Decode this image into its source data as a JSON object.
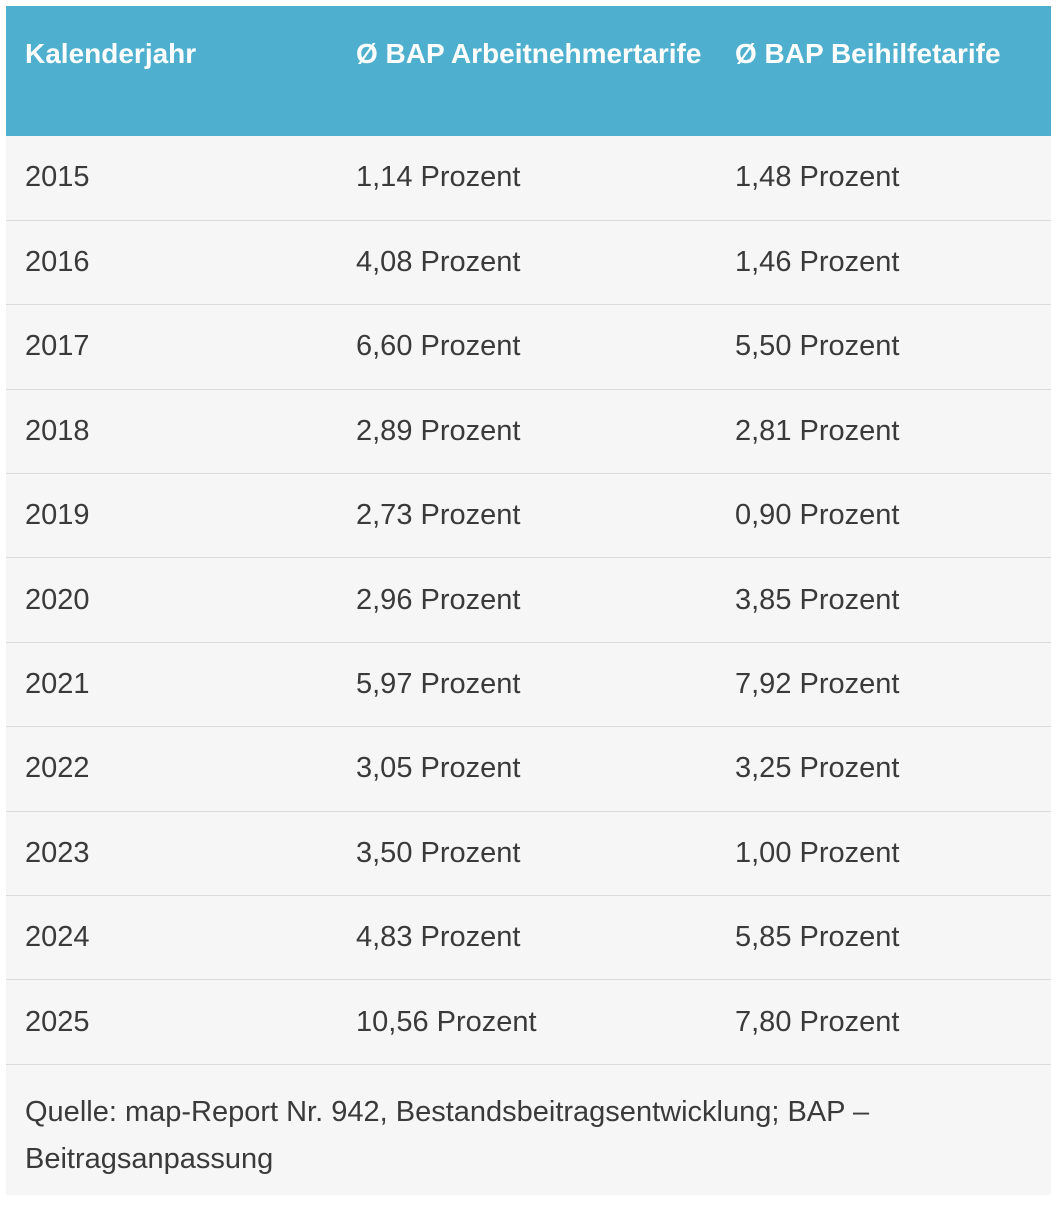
{
  "table": {
    "header": [
      "Kalenderjahr",
      "Ø BAP Arbeitnehmertarife",
      "Ø BAP Beihilfetarife"
    ],
    "rows": [
      [
        "2015",
        "1,14 Prozent",
        "1,48 Prozent"
      ],
      [
        "2016",
        "4,08 Prozent",
        "1,46 Prozent"
      ],
      [
        "2017",
        "6,60 Prozent",
        "5,50 Prozent"
      ],
      [
        "2018",
        "2,89 Prozent",
        "2,81 Prozent"
      ],
      [
        "2019",
        "2,73 Prozent",
        "0,90 Prozent"
      ],
      [
        "2020",
        "2,96 Prozent",
        "3,85 Prozent"
      ],
      [
        "2021",
        "5,97 Prozent",
        "7,92 Prozent"
      ],
      [
        "2022",
        "3,05 Prozent",
        "3,25 Prozent"
      ],
      [
        "2023",
        "3,50 Prozent",
        "1,00 Prozent"
      ],
      [
        "2024",
        "4,83 Prozent",
        "5,85 Prozent"
      ],
      [
        "2025",
        "10,56 Prozent",
        "7,80 Prozent"
      ]
    ],
    "source": "Quelle: map-Report Nr. 942, Bestandsbeitragsentwicklung; BAP – Beitragsanpassung"
  }
}
